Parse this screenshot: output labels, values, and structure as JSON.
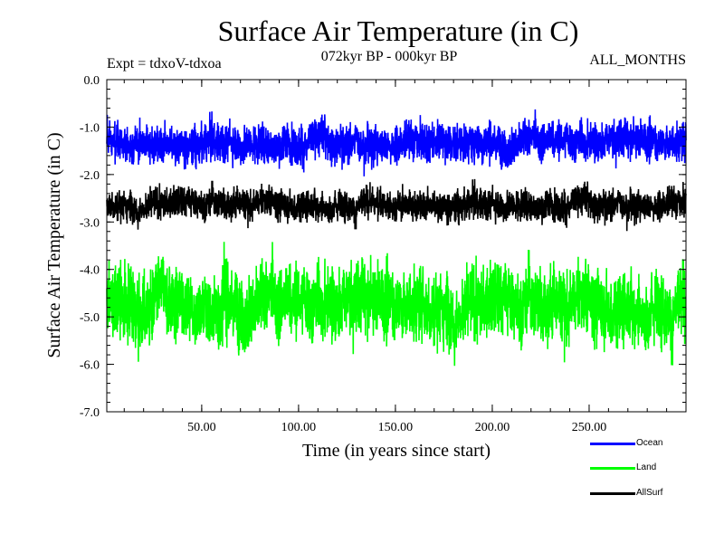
{
  "header": {
    "title": "Surface Air Temperature (in C)",
    "expt": "Expt = tdxoV-tdxoa",
    "period": "072kyr BP - 000kyr BP",
    "months": "ALL_MONTHS"
  },
  "chart_data": {
    "type": "line",
    "xlabel": "Time (in years since start)",
    "ylabel": "Surface Air Temperature (in C)",
    "xlim": [
      1,
      300
    ],
    "ylim": [
      -7.0,
      0.0
    ],
    "xticks": [
      50,
      100,
      150,
      200,
      250
    ],
    "xtick_labels": [
      "50.00",
      "100.00",
      "150.00",
      "200.00",
      "250.00"
    ],
    "yticks": [
      0,
      -1,
      -2,
      -3,
      -4,
      -5,
      -6,
      -7
    ],
    "ytick_labels": [
      "0.0",
      "-1.0",
      "-2.0",
      "-3.0",
      "-4.0",
      "-5.0",
      "-6.0",
      "-7.0"
    ],
    "grid": false,
    "legend_position": "bottom-right",
    "series": [
      {
        "name": "Ocean",
        "color": "#0000ff",
        "mean": -1.3,
        "min": -2.3,
        "max": -0.3
      },
      {
        "name": "Land",
        "color": "#00ff00",
        "mean": -4.7,
        "min": -6.8,
        "max": -3.0
      },
      {
        "name": "AllSurf",
        "color": "#000000",
        "mean": -2.6,
        "min": -3.4,
        "max": -1.8
      }
    ]
  }
}
